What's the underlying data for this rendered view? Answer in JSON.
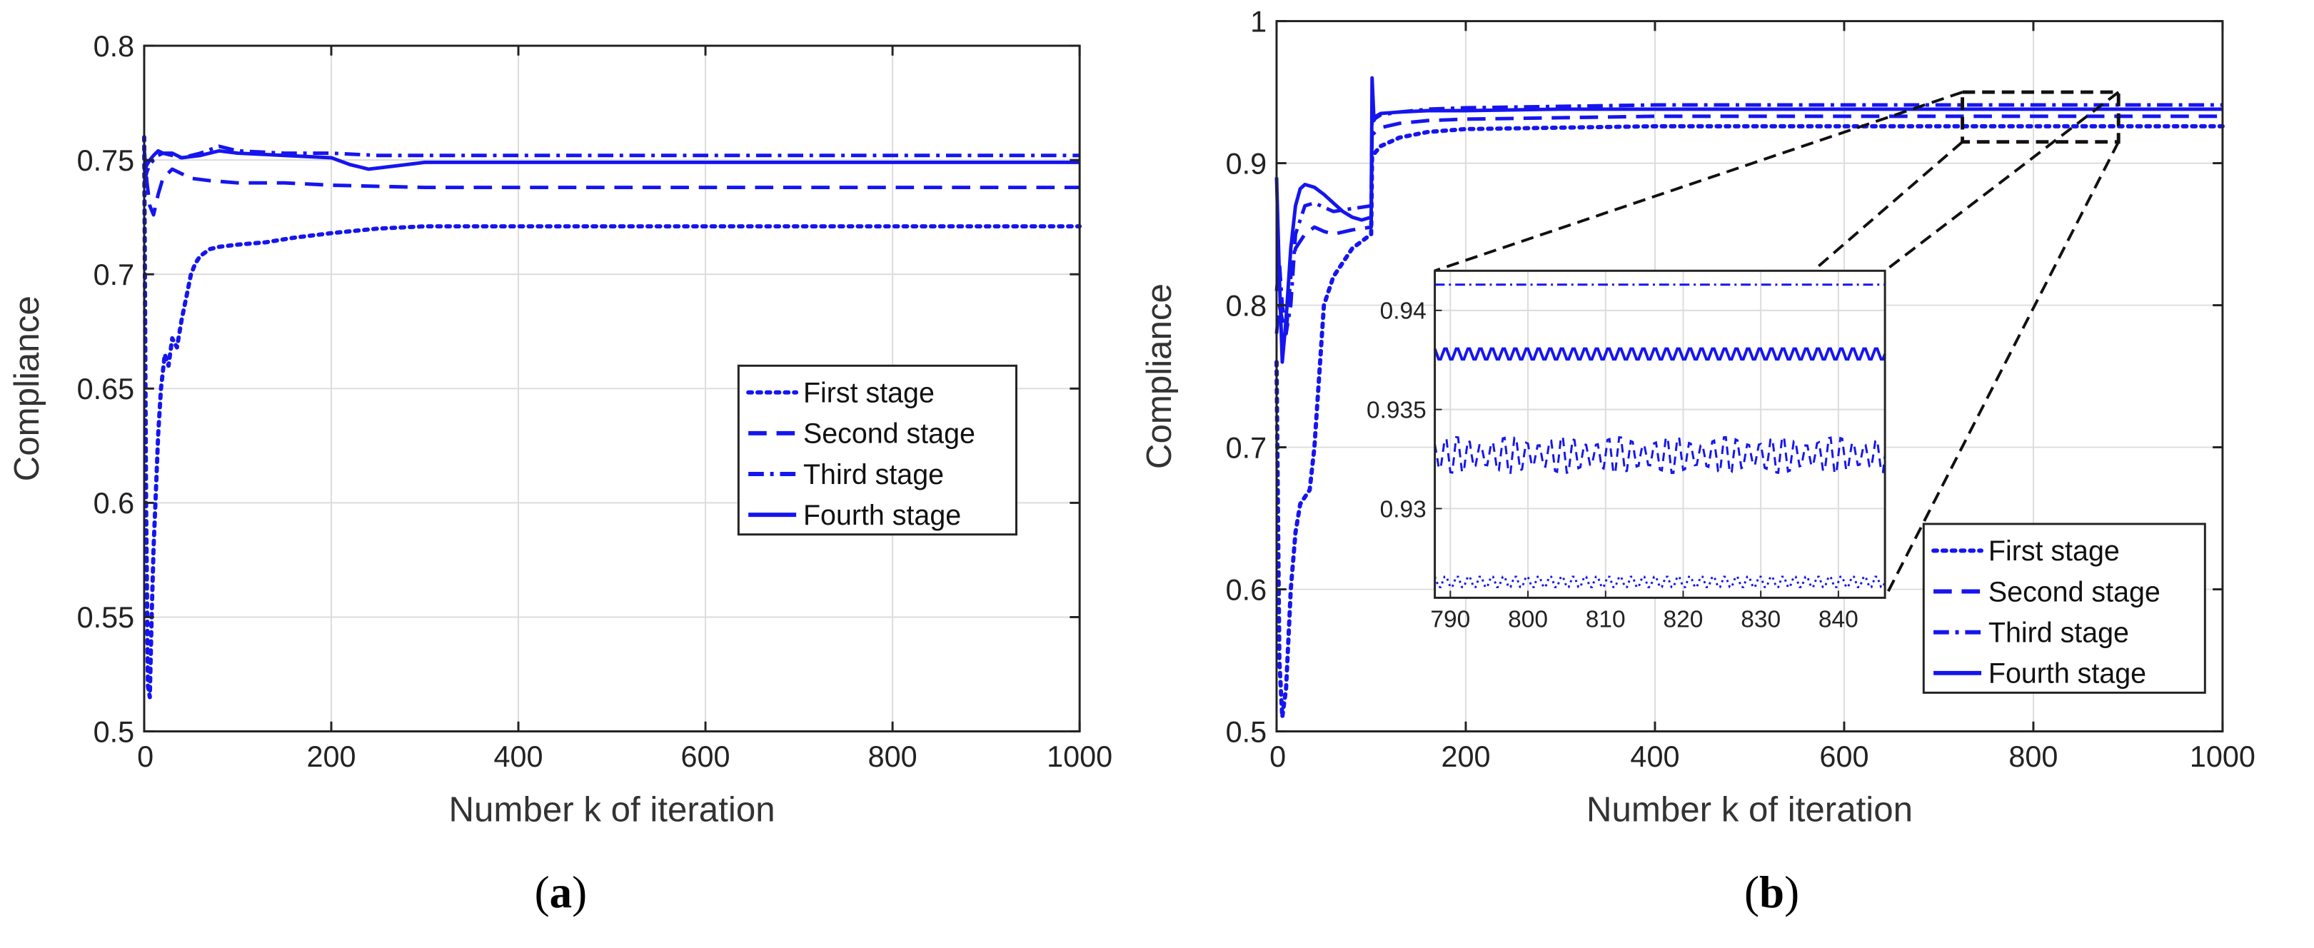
{
  "chart_data": [
    {
      "type": "line",
      "caption": [
        "(",
        "a",
        ")"
      ],
      "xlabel": "Number k of iteration",
      "ylabel": "Compliance",
      "xlim": [
        0,
        1000
      ],
      "ylim": [
        0.5,
        0.8
      ],
      "xticks": [
        0,
        200,
        400,
        600,
        800,
        1000
      ],
      "xtick_labels": [
        "0",
        "200",
        "400",
        "600",
        "800",
        "1000"
      ],
      "yticks": [
        0.5,
        0.55,
        0.6,
        0.65,
        0.7,
        0.75,
        0.8
      ],
      "ytick_labels": [
        "0.5",
        "0.55",
        "0.6",
        "0.65",
        "0.7",
        "0.75",
        "0.8"
      ],
      "grid": true,
      "legend_position": "center-right",
      "color": "#1515f0",
      "series": [
        {
          "name": "First stage",
          "style": "dotted",
          "x": [
            0,
            2,
            4,
            6,
            8,
            10,
            12,
            15,
            18,
            22,
            26,
            30,
            35,
            40,
            45,
            50,
            55,
            60,
            70,
            80,
            100,
            130,
            160,
            200,
            250,
            300,
            400,
            500,
            600,
            700,
            800,
            900,
            1000
          ],
          "y": [
            0.76,
            0.6,
            0.52,
            0.515,
            0.55,
            0.58,
            0.6,
            0.63,
            0.65,
            0.665,
            0.66,
            0.672,
            0.668,
            0.68,
            0.69,
            0.7,
            0.705,
            0.708,
            0.711,
            0.712,
            0.713,
            0.714,
            0.716,
            0.718,
            0.72,
            0.721,
            0.721,
            0.721,
            0.721,
            0.721,
            0.721,
            0.721,
            0.721
          ]
        },
        {
          "name": "Second stage",
          "style": "dashed",
          "x": [
            0,
            3,
            6,
            10,
            15,
            20,
            30,
            40,
            50,
            70,
            100,
            150,
            200,
            300,
            400,
            600,
            800,
            1000
          ],
          "y": [
            0.755,
            0.74,
            0.73,
            0.726,
            0.735,
            0.742,
            0.746,
            0.744,
            0.742,
            0.741,
            0.74,
            0.74,
            0.739,
            0.738,
            0.738,
            0.738,
            0.738,
            0.738
          ]
        },
        {
          "name": "Third stage",
          "style": "dashdot",
          "x": [
            0,
            3,
            6,
            10,
            15,
            20,
            30,
            40,
            60,
            80,
            100,
            150,
            200,
            250,
            300,
            400,
            600,
            800,
            1000
          ],
          "y": [
            0.74,
            0.745,
            0.748,
            0.75,
            0.752,
            0.753,
            0.752,
            0.751,
            0.753,
            0.756,
            0.754,
            0.753,
            0.753,
            0.752,
            0.752,
            0.752,
            0.752,
            0.752,
            0.752
          ]
        },
        {
          "name": "Fourth stage",
          "style": "solid",
          "x": [
            0,
            3,
            6,
            10,
            15,
            20,
            30,
            40,
            60,
            80,
            100,
            150,
            200,
            220,
            240,
            260,
            300,
            350,
            400,
            600,
            800,
            1000
          ],
          "y": [
            0.745,
            0.748,
            0.75,
            0.752,
            0.754,
            0.753,
            0.753,
            0.751,
            0.752,
            0.754,
            0.753,
            0.752,
            0.751,
            0.748,
            0.746,
            0.747,
            0.749,
            0.749,
            0.749,
            0.749,
            0.749,
            0.749
          ]
        }
      ]
    },
    {
      "type": "line",
      "caption": [
        "(",
        "b",
        ")"
      ],
      "xlabel": "Number k of iteration",
      "ylabel": "Compliance",
      "xlim": [
        0,
        1000
      ],
      "ylim": [
        0.5,
        1.0
      ],
      "xticks": [
        0,
        200,
        400,
        600,
        800,
        1000
      ],
      "xtick_labels": [
        "0",
        "200",
        "400",
        "600",
        "800",
        "1000"
      ],
      "yticks": [
        0.5,
        0.6,
        0.7,
        0.8,
        0.9,
        1.0
      ],
      "ytick_labels": [
        "0.5",
        "0.6",
        "0.7",
        "0.8",
        "0.9",
        "1"
      ],
      "grid": true,
      "legend_position": "bottom-right",
      "color": "#1515f0",
      "zoom_box": {
        "x": [
          725,
          890
        ],
        "y": [
          0.915,
          0.95
        ]
      },
      "series": [
        {
          "name": "First stage",
          "style": "dotted",
          "x": [
            0,
            3,
            6,
            10,
            15,
            20,
            25,
            30,
            35,
            40,
            50,
            60,
            80,
            100,
            101,
            110,
            130,
            160,
            200,
            300,
            400,
            600,
            800,
            1000
          ],
          "y": [
            0.76,
            0.55,
            0.51,
            0.53,
            0.6,
            0.64,
            0.66,
            0.665,
            0.67,
            0.7,
            0.8,
            0.82,
            0.84,
            0.85,
            0.905,
            0.912,
            0.918,
            0.922,
            0.924,
            0.925,
            0.926,
            0.926,
            0.926,
            0.926
          ]
        },
        {
          "name": "Second stage",
          "style": "dashed",
          "x": [
            0,
            3,
            6,
            10,
            15,
            20,
            30,
            40,
            50,
            60,
            80,
            100,
            101,
            110,
            130,
            160,
            200,
            300,
            400,
            600,
            800,
            1000
          ],
          "y": [
            0.78,
            0.8,
            0.79,
            0.78,
            0.82,
            0.84,
            0.85,
            0.855,
            0.852,
            0.85,
            0.853,
            0.855,
            0.92,
            0.925,
            0.928,
            0.93,
            0.931,
            0.932,
            0.933,
            0.933,
            0.933,
            0.933
          ]
        },
        {
          "name": "Third stage",
          "style": "dashdot",
          "x": [
            0,
            3,
            6,
            10,
            15,
            20,
            30,
            40,
            50,
            60,
            80,
            100,
            101,
            110,
            130,
            160,
            200,
            300,
            400,
            600,
            800,
            1000
          ],
          "y": [
            0.81,
            0.83,
            0.8,
            0.78,
            0.8,
            0.85,
            0.87,
            0.872,
            0.869,
            0.866,
            0.868,
            0.87,
            0.93,
            0.934,
            0.936,
            0.938,
            0.939,
            0.94,
            0.941,
            0.941,
            0.941,
            0.941
          ]
        },
        {
          "name": "Fourth stage",
          "style": "solid",
          "x": [
            0,
            3,
            6,
            10,
            15,
            20,
            25,
            30,
            40,
            50,
            60,
            70,
            80,
            90,
            100,
            101,
            103,
            105,
            110,
            130,
            160,
            200,
            300,
            400,
            600,
            800,
            1000
          ],
          "y": [
            0.89,
            0.82,
            0.76,
            0.79,
            0.84,
            0.87,
            0.882,
            0.885,
            0.883,
            0.878,
            0.872,
            0.866,
            0.862,
            0.86,
            0.862,
            0.96,
            0.93,
            0.933,
            0.935,
            0.936,
            0.937,
            0.937,
            0.938,
            0.938,
            0.938,
            0.938,
            0.938
          ]
        }
      ],
      "inset": {
        "xlim": [
          788,
          846
        ],
        "ylim": [
          0.9255,
          0.942
        ],
        "xticks": [
          790,
          800,
          810,
          820,
          830,
          840
        ],
        "xtick_labels": [
          "790",
          "800",
          "810",
          "820",
          "830",
          "840"
        ],
        "yticks": [
          0.93,
          0.935,
          0.94
        ],
        "ytick_labels": [
          "0.93",
          "0.935",
          "0.94"
        ],
        "series": [
          {
            "name": "First stage",
            "style": "dotted",
            "center": 0.9263,
            "amplitude": 0.0003,
            "period": 1.5
          },
          {
            "name": "Second stage",
            "style": "dashed",
            "center": 0.9327,
            "amplitude": 0.0008,
            "period": 1.5
          },
          {
            "name": "Third stage",
            "style": "dashdot",
            "center": 0.9413,
            "amplitude": 0.0,
            "period": 1.5
          },
          {
            "name": "Fourth stage",
            "style": "solid",
            "center": 0.9378,
            "amplitude": 0.0003,
            "period": 1.5
          }
        ]
      }
    }
  ]
}
